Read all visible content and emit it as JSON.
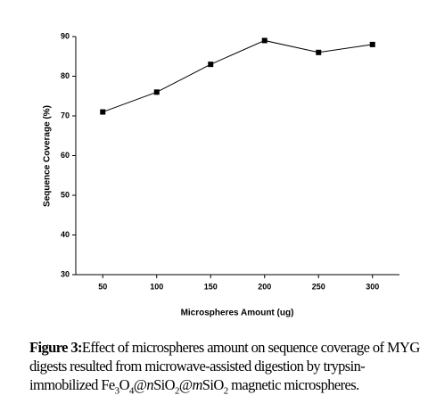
{
  "chart_data": {
    "type": "line",
    "x_label": "Microspheres Amount (ug)",
    "y_label": "Sequence Coverage (%)",
    "x": [
      50,
      100,
      150,
      200,
      250,
      300
    ],
    "series": [
      {
        "color": "#000000",
        "values": [
          71,
          76,
          83,
          89,
          86,
          88
        ]
      }
    ],
    "xlim": [
      25,
      325
    ],
    "xticks": [
      50,
      100,
      150,
      200,
      250,
      300
    ],
    "ylim": [
      30,
      90
    ],
    "yticks": [
      30,
      40,
      50,
      60,
      70,
      80,
      90
    ]
  },
  "caption": {
    "label": "Figure 3:",
    "text": "Effect of microspheres amount on sequence coverage of MYG digests resulted from microwave-assisted digestion by trypsin-immobilized",
    "formula": [
      "Fe",
      "3",
      "O",
      "4",
      "@",
      "n",
      "SiO",
      "2",
      "@",
      "m",
      "SiO",
      "2"
    ],
    "ending": "magnetic microspheres."
  }
}
